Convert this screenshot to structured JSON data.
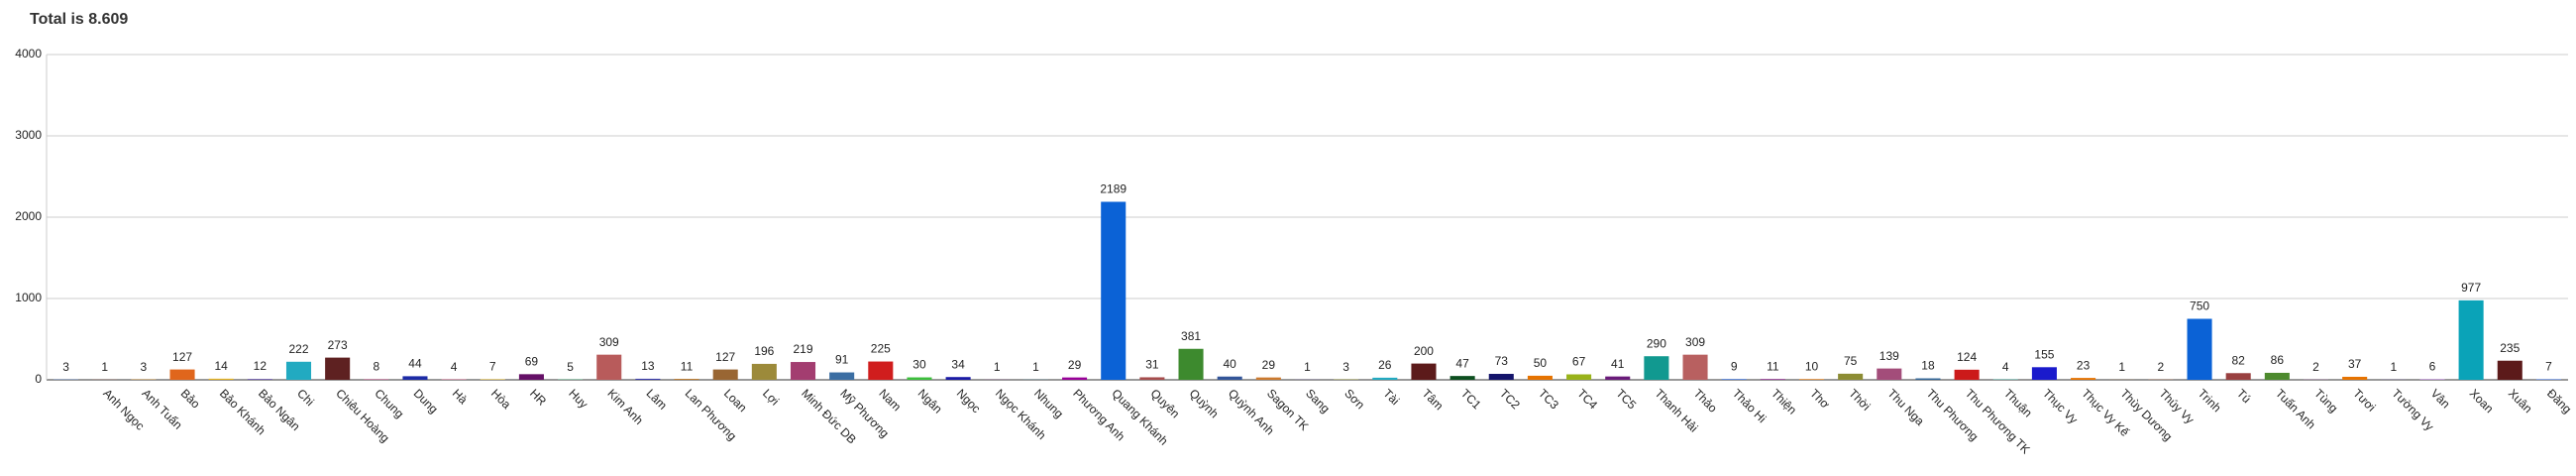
{
  "chart_data": {
    "type": "bar",
    "title": "Total is 8.609",
    "categories": [
      null,
      "Anh Ngọc",
      "Anh Tuấn",
      "Bảo",
      "Bảo Khánh",
      "Bảo Ngân",
      "Chi",
      "Chiêu Hoàng",
      "Chung",
      "Dung",
      "Hà",
      "Hòa",
      "HR",
      "Huy",
      "Kim Anh",
      "Lâm",
      "Lan Phương",
      "Loan",
      "Lợi",
      "Minh Đức DB",
      "Mỹ Phương",
      "Nam",
      "Ngân",
      "Ngọc",
      "Ngọc Khánh",
      "Nhung",
      "Phương Anh",
      "Quang Khánh",
      "Quyên",
      "Quỳnh",
      "Quỳnh Anh",
      "Sagon TK",
      "Sang",
      "Sơn",
      "Tài",
      "Tâm",
      "TC1",
      "TC2",
      "TC3",
      "TC4",
      "TC5",
      "Thanh Hải",
      "Thảo",
      "Thảo Hi",
      "Thiện",
      "Thơ",
      "Thời",
      "Thu Nga",
      "Thu Phương",
      "Thu Phương TK",
      "Thuận",
      "Thục Vy",
      "Thục Vy Kế",
      "Thùy Dương",
      "Thúy Vy",
      "Trinh",
      "Tú",
      "Tuấn Anh",
      "Tùng",
      "Tươi",
      "Tường Vy",
      "Vân",
      "Xoan",
      "Xuân",
      "Đăng"
    ],
    "values": [
      3,
      1,
      3,
      127,
      14,
      12,
      222,
      273,
      8,
      44,
      4,
      7,
      69,
      5,
      309,
      13,
      11,
      127,
      196,
      219,
      91,
      225,
      30,
      34,
      1,
      1,
      29,
      2189,
      31,
      381,
      40,
      29,
      1,
      3,
      26,
      200,
      47,
      73,
      50,
      67,
      41,
      290,
      309,
      9,
      11,
      10,
      75,
      139,
      18,
      124,
      4,
      155,
      23,
      1,
      2,
      750,
      82,
      86,
      2,
      37,
      1,
      6,
      977,
      235,
      7
    ],
    "colors": [
      "#3366cc",
      "#dc3912",
      "#ff9900",
      "#e0661c",
      "#e6b422",
      "#7b68b0",
      "#22aac1",
      "#5e2121",
      "#a64d79",
      "#1c2ba6",
      "#dd4477",
      "#c9a227",
      "#651067",
      "#329262",
      "#b85b5b",
      "#3b3eac",
      "#b77322",
      "#996633",
      "#9c8a3a",
      "#a33d70",
      "#3b6ea3",
      "#d01d1d",
      "#3cbf3c",
      "#1a1aa6",
      "#990099",
      "#0099c6",
      "#990099",
      "#0b62d6",
      "#a64d4d",
      "#3d8a2e",
      "#335599",
      "#cc7a2e",
      "#6633cc",
      "#aaaa11",
      "#22aac1",
      "#5c1a1a",
      "#0d4f1f",
      "#14146b",
      "#e67300",
      "#99b31a",
      "#6a1b7a",
      "#119990",
      "#b86060",
      "#3366cc",
      "#994499",
      "#dd8833",
      "#8c8c33",
      "#a34d7a",
      "#336699",
      "#cc1a1a",
      "#22aa99",
      "#1a1acc",
      "#e67300",
      "#b35900",
      "#cc6633",
      "#0b62d6",
      "#994040",
      "#4d8a2e",
      "#994499",
      "#e67300",
      "#6633cc",
      "#8844aa",
      "#0aa3b8",
      "#5c1a1a",
      "#3366cc"
    ],
    "ylim": [
      0,
      4000
    ],
    "yticks": [
      0,
      1000,
      2000,
      3000,
      4000
    ],
    "grid": true
  }
}
